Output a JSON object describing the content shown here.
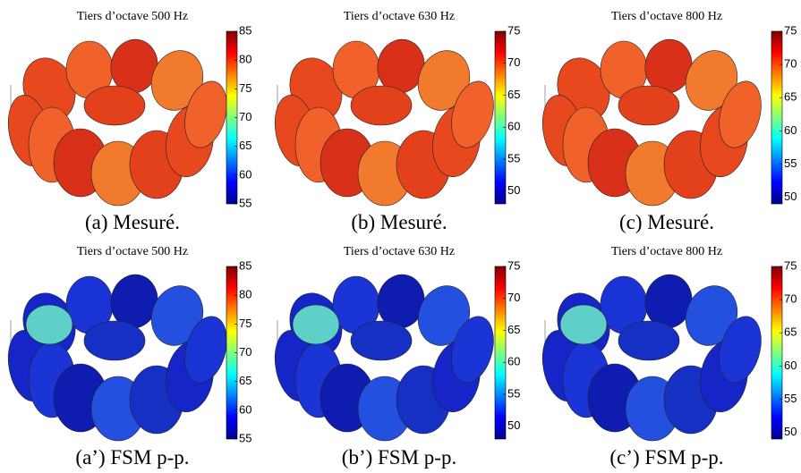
{
  "panels": [
    {
      "title": "Tiers d’octave 500 Hz",
      "caption": "(a) Mesuré.",
      "colorbar": {
        "clim": [
          55,
          85
        ],
        "ticks": [
          55,
          60,
          65,
          70,
          75,
          80,
          85
        ]
      }
    },
    {
      "title": "Tiers d’octave 630 Hz",
      "caption": "(b) Mesuré.",
      "colorbar": {
        "clim": [
          48,
          75
        ],
        "ticks": [
          50,
          55,
          60,
          65,
          70,
          75
        ]
      }
    },
    {
      "title": "Tiers d’octave 800 Hz",
      "caption": "(c) Mesuré.",
      "colorbar": {
        "clim": [
          49,
          75
        ],
        "ticks": [
          50,
          55,
          60,
          65,
          70,
          75
        ]
      }
    },
    {
      "title": "Tiers d’octave 500 Hz",
      "caption": "(a’) FSM p-p.",
      "colorbar": {
        "clim": [
          55,
          85
        ],
        "ticks": [
          55,
          60,
          65,
          70,
          75,
          80,
          85
        ]
      }
    },
    {
      "title": "Tiers d’octave 630 Hz",
      "caption": "(b’) FSM p-p.",
      "colorbar": {
        "clim": [
          48,
          75
        ],
        "ticks": [
          50,
          55,
          60,
          65,
          70,
          75
        ]
      }
    },
    {
      "title": "Tiers d’octave 800 Hz",
      "caption": "(c’) FSM p-p.",
      "colorbar": {
        "clim": [
          49,
          75
        ],
        "ticks": [
          50,
          55,
          60,
          65,
          70,
          75
        ]
      }
    }
  ]
}
